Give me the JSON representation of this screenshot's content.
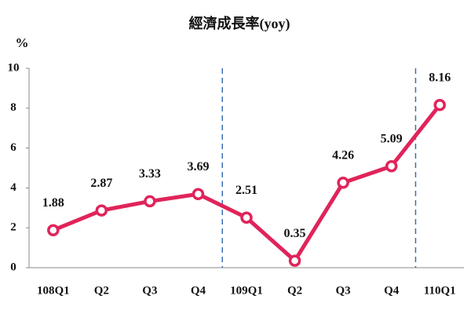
{
  "chart_data": {
    "type": "line",
    "title": "經濟成長率(yoy)",
    "y_label": "%",
    "categories": [
      "108Q1",
      "Q2",
      "Q3",
      "Q4",
      "109Q1",
      "Q2",
      "Q3",
      "Q4",
      "110Q1"
    ],
    "values": [
      1.88,
      2.87,
      3.33,
      3.69,
      2.51,
      0.35,
      4.26,
      5.09,
      8.16
    ],
    "color": "#e0245a",
    "ylim": [
      0,
      10
    ],
    "yticks": [
      0,
      2,
      4,
      6,
      8,
      10
    ]
  }
}
